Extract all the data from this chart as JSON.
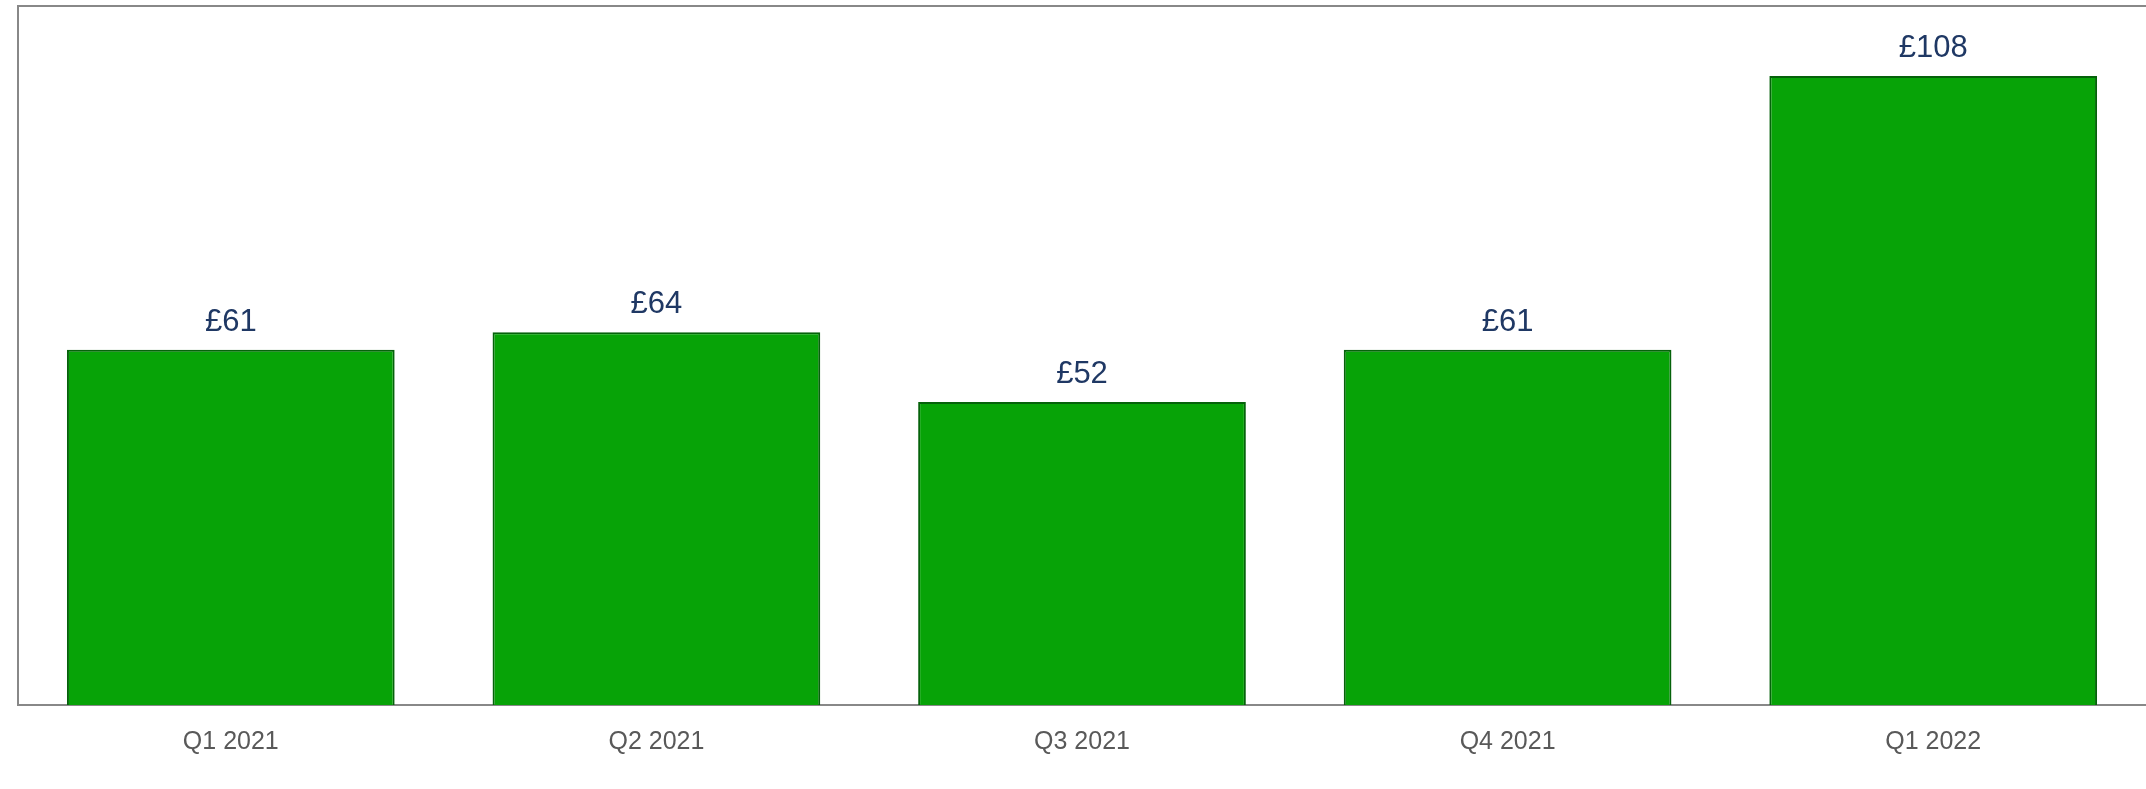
{
  "chart_data": {
    "type": "bar",
    "categories": [
      "Q1 2021",
      "Q2 2021",
      "Q3 2021",
      "Q4 2021",
      "Q1 2022"
    ],
    "values": [
      61,
      64,
      52,
      61,
      108
    ],
    "value_labels": [
      "£61",
      "£64",
      "£52",
      "£61",
      "£108"
    ],
    "color": "#07a307",
    "relative": false,
    "grid": false,
    "legend": false
  }
}
